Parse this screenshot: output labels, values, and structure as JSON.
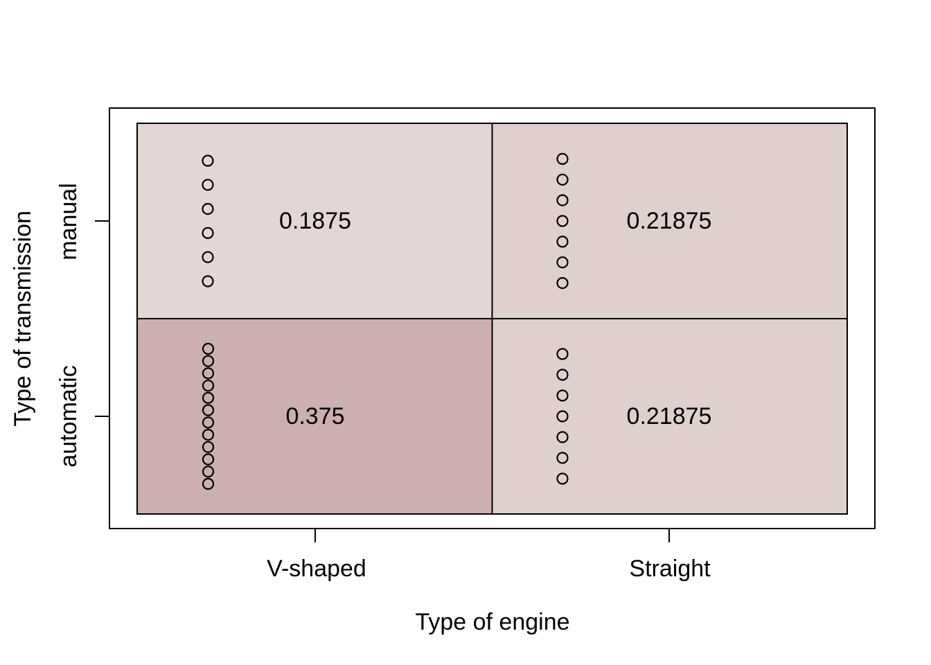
{
  "chart_data": {
    "type": "heatmap",
    "subtype": "fourfold-contingency-plot",
    "title": "",
    "xlabel": "Type of engine",
    "ylabel": "Type of transmission",
    "x_categories": [
      "V-shaped",
      "Straight"
    ],
    "y_categories": [
      "manual",
      "automatic"
    ],
    "total_observations": 32,
    "legend_position": "none",
    "grid": false,
    "cells": [
      {
        "engine": "V-shaped",
        "transmission": "manual",
        "proportion": 0.1875,
        "proportion_label": "0.1875",
        "count": 6,
        "fill": "#e4d6d4"
      },
      {
        "engine": "Straight",
        "transmission": "manual",
        "proportion": 0.21875,
        "proportion_label": "0.21875",
        "count": 7,
        "fill": "#dfd0cd"
      },
      {
        "engine": "V-shaped",
        "transmission": "automatic",
        "proportion": 0.375,
        "proportion_label": "0.375",
        "count": 12,
        "fill": "#cdafb1"
      },
      {
        "engine": "Straight",
        "transmission": "automatic",
        "proportion": 0.21875,
        "proportion_label": "0.21875",
        "count": 7,
        "fill": "#dfd0cd"
      }
    ],
    "colors": {
      "frame_stroke": "#000000",
      "dot_stroke": "#000000",
      "text": "#000000",
      "background": "#ffffff"
    }
  }
}
